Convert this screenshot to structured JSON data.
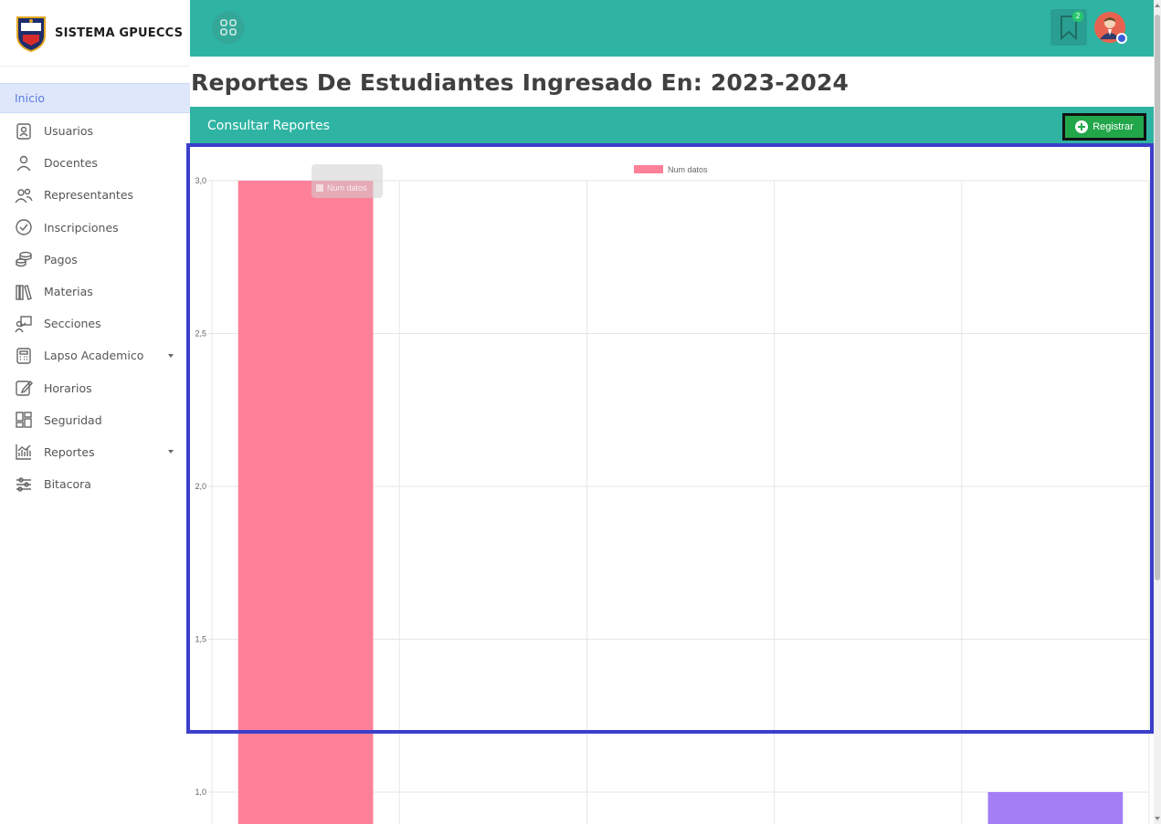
{
  "brand": {
    "title": "SISTEMA GPUECCS"
  },
  "sidebar": {
    "items": [
      {
        "label": "Inicio",
        "icon": "none",
        "active": true
      },
      {
        "label": "Usuarios",
        "icon": "user-badge-icon"
      },
      {
        "label": "Docentes",
        "icon": "person-icon"
      },
      {
        "label": "Representantes",
        "icon": "people-icon"
      },
      {
        "label": "Inscripciones",
        "icon": "check-circle-icon"
      },
      {
        "label": "Pagos",
        "icon": "coins-icon"
      },
      {
        "label": "Materias",
        "icon": "books-icon"
      },
      {
        "label": "Secciones",
        "icon": "classroom-icon"
      },
      {
        "label": "Lapso Academico",
        "icon": "calculator-icon",
        "dropdown": true
      },
      {
        "label": "Horarios",
        "icon": "edit-icon"
      },
      {
        "label": "Seguridad",
        "icon": "dashboard-icon"
      },
      {
        "label": "Reportes",
        "icon": "chart-icon",
        "dropdown": true
      },
      {
        "label": "Bitacora",
        "icon": "sliders-icon"
      }
    ]
  },
  "topbar": {
    "notification_count": "2"
  },
  "page": {
    "title": "Reportes De Estudiantes Ingresado En: 2023-2024"
  },
  "panel": {
    "title": "Consultar Reportes",
    "register_label": "Registrar"
  },
  "chart_data": {
    "type": "bar",
    "categories": [
      "",
      "",
      "",
      "",
      ""
    ],
    "series": [
      {
        "name": "Num datos",
        "values": [
          3,
          null,
          null,
          null,
          1
        ],
        "colors": [
          "#ff8099",
          "",
          "",
          "",
          "#a47ef5"
        ]
      }
    ],
    "ytick_labels": [
      "3,0",
      "2,5",
      "2,0",
      "1,5",
      "1,0"
    ],
    "yticks": [
      3.0,
      2.5,
      2.0,
      1.5,
      1.0
    ],
    "ylim": [
      1.0,
      3.0
    ],
    "legend_placement": "top-center",
    "legend_color": "#ff8099",
    "tooltip_label": "Num datos",
    "grid": true
  }
}
